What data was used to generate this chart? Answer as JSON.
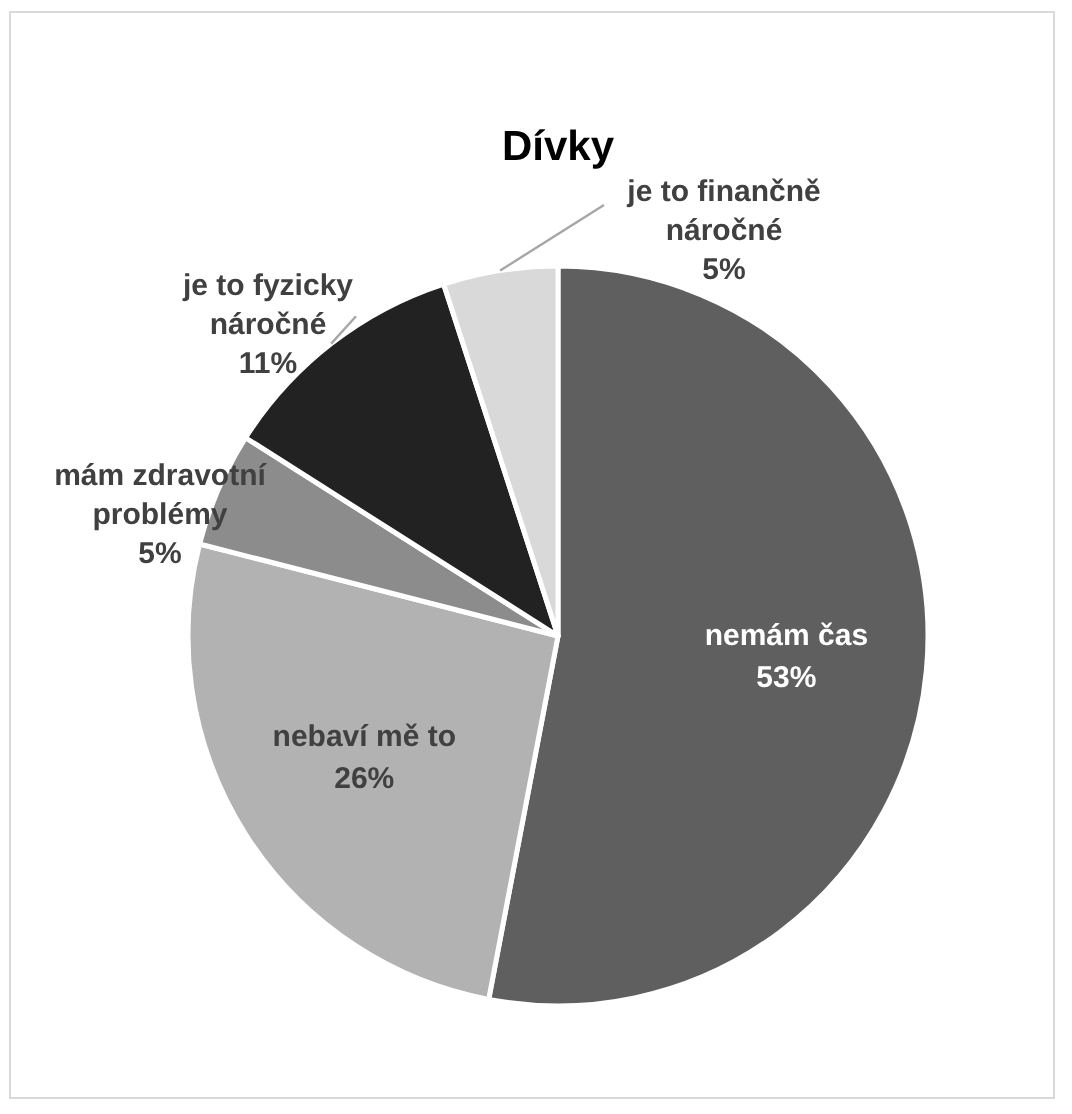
{
  "chart_data": {
    "type": "pie",
    "title": "Dívky",
    "categories": [
      "nemám čas",
      "nebaví mě to",
      "mám zdravotní problémy",
      "je to fyzicky náročné",
      "je to finančně náročné"
    ],
    "values": [
      53,
      26,
      5,
      11,
      5
    ],
    "value_labels": [
      "53%",
      "26%",
      "5%",
      "11%",
      "5%"
    ],
    "colors": [
      "#5f5f5f",
      "#b2b2b2",
      "#8c8c8c",
      "#222222",
      "#d9d9d9"
    ]
  }
}
